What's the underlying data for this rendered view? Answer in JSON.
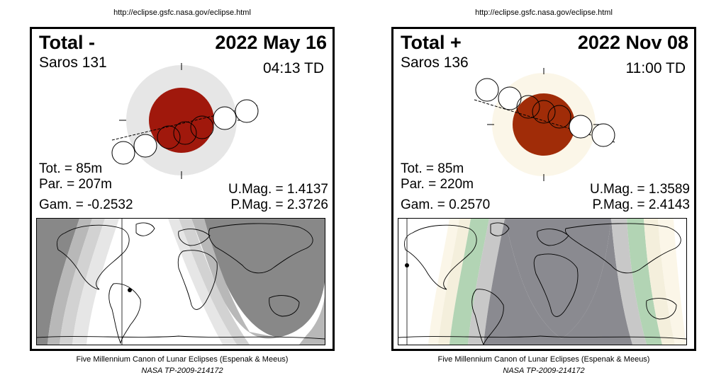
{
  "panels": [
    {
      "url": "http://eclipse.gsfc.nasa.gov/eclipse.html",
      "type": "Total  -",
      "saros": "Saros 131",
      "date": "2022 May 16",
      "time": "04:13 TD",
      "tot": "Tot. =  85m",
      "par": "Par. = 207m",
      "gam": "Gam. = -0.2532",
      "umag": "U.Mag. = 1.4137",
      "pmag": "P.Mag. = 2.3726",
      "footer1": "Five Millennium Canon of Lunar Eclipses (Espenak & Meeus)",
      "footer2": "NASA TP-2009-214172",
      "colors": {
        "umbra": "#a0180c",
        "penumbra": "#e6e6e6"
      }
    },
    {
      "url": "http://eclipse.gsfc.nasa.gov/eclipse.html",
      "type": "Total  +",
      "saros": "Saros 136",
      "date": "2022 Nov 08",
      "time": "11:00 TD",
      "tot": "Tot. =  85m",
      "par": "Par. = 220m",
      "gam": "Gam. = 0.2570",
      "umag": "U.Mag. = 1.3589",
      "pmag": "P.Mag. = 2.4143",
      "footer1": "Five Millennium Canon of Lunar Eclipses (Espenak & Meeus)",
      "footer2": "NASA TP-2009-214172",
      "colors": {
        "umbra": "#a02c08",
        "penumbra": "#fbf6e8"
      }
    }
  ]
}
